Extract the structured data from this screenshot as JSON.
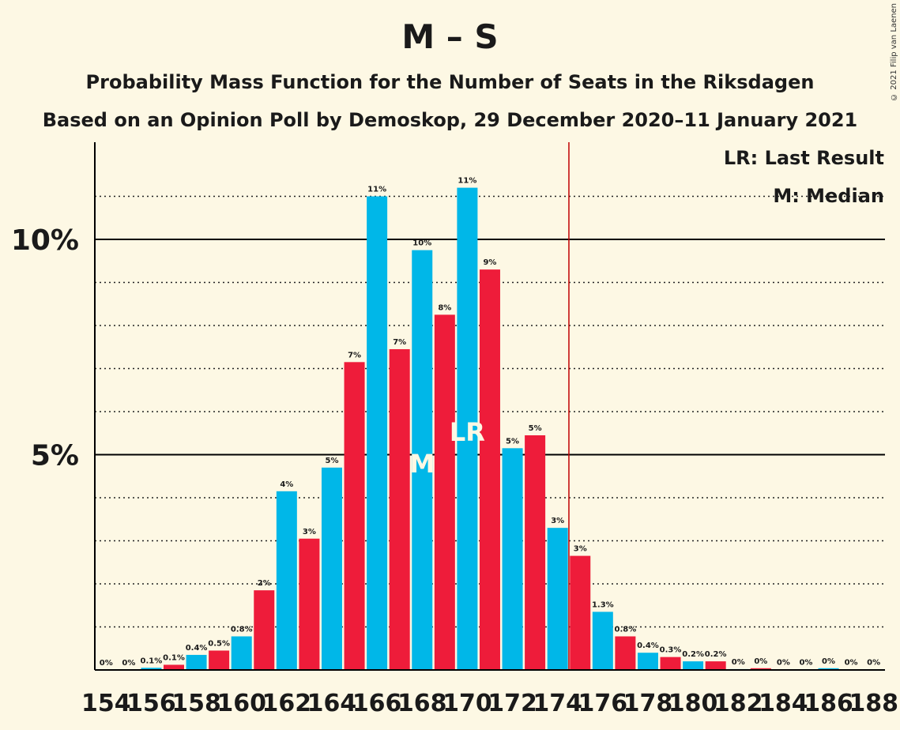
{
  "title": "M – S",
  "subtitle": "Probability Mass Function for the Number of Seats in the Riksdagen",
  "subtitle2": "Based on an Opinion Poll by Demoskop, 29 December 2020–11 January 2021",
  "copyright": "© 2021 Filip van Laenen",
  "legend": {
    "last_result": "LR: Last Result",
    "median": "M: Median"
  },
  "markers": {
    "last_result_label": "LR",
    "median_label": "M",
    "last_result_seat": 170,
    "median_seat": 168,
    "majority_line_seat": 174.5
  },
  "colors": {
    "blue": "#00b7e8",
    "red": "#ee1c3a",
    "majority_line": "#c00000"
  },
  "chart_data": {
    "type": "bar",
    "ylim": [
      0,
      12
    ],
    "y_ticks": [
      {
        "value": 5,
        "label": "5%"
      },
      {
        "value": 10,
        "label": "10%"
      }
    ],
    "minor_gridlines": [
      1,
      2,
      3,
      4,
      6,
      7,
      8,
      9,
      11
    ],
    "x_tick_labels": [
      "154",
      "156",
      "158",
      "160",
      "162",
      "164",
      "166",
      "168",
      "170",
      "172",
      "174",
      "176",
      "178",
      "180",
      "182",
      "184",
      "186",
      "188"
    ],
    "seats": [
      154,
      155,
      156,
      157,
      158,
      159,
      160,
      161,
      162,
      163,
      164,
      165,
      166,
      167,
      168,
      169,
      170,
      171,
      172,
      173,
      174,
      175,
      176,
      177,
      178,
      179,
      180,
      181,
      182,
      183,
      184,
      185,
      186,
      187,
      188
    ],
    "values": [
      0,
      0,
      0.05,
      0.12,
      0.35,
      0.45,
      0.78,
      1.85,
      4.15,
      3.05,
      4.7,
      7.15,
      11.0,
      7.45,
      9.75,
      8.25,
      11.2,
      9.3,
      5.15,
      5.45,
      3.3,
      2.65,
      1.35,
      0.78,
      0.4,
      0.3,
      0.2,
      0.2,
      0.02,
      0.04,
      0.01,
      0.01,
      0.04,
      0.01,
      0.01
    ],
    "labels": [
      "0%",
      "0%",
      "0.1%",
      "0.1%",
      "0.4%",
      "0.5%",
      "0.8%",
      "2%",
      "4%",
      "3%",
      "5%",
      "7%",
      "11%",
      "7%",
      "10%",
      "8%",
      "11%",
      "9%",
      "5%",
      "5%",
      "3%",
      "3%",
      "1.3%",
      "0.8%",
      "0.4%",
      "0.3%",
      "0.2%",
      "0.2%",
      "0%",
      "0%",
      "0%",
      "0%",
      "0%",
      "0%",
      "0%"
    ]
  }
}
